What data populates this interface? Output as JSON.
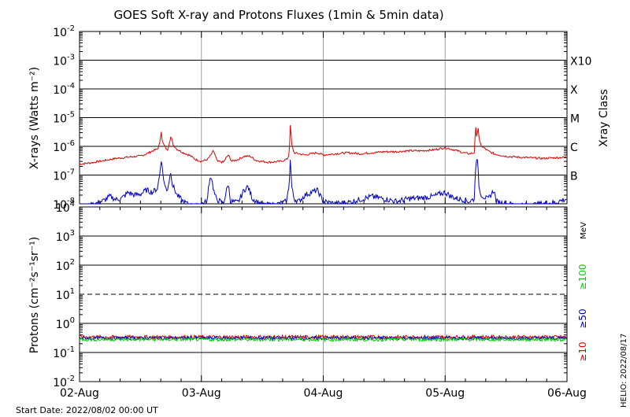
{
  "title": "GOES Soft X-ray and Protons Fluxes   (1min & 5min data)",
  "start_date": "Start Date: 2022/08/02 00:00 UT",
  "credit": "HELIO: 2022/08/17",
  "colors": {
    "xray_long": "#e00000",
    "xray_short": "#0000c8",
    "p10": "#e00000",
    "p50": "#0000c8",
    "p100": "#00d000",
    "grid": "#000000",
    "day_line": "#a0a0a0"
  },
  "chart_data": [
    {
      "type": "line",
      "name": "xray",
      "ylabel": "X-rays (Watts m⁻²)",
      "y_scale": "log",
      "ylim": [
        1e-08,
        0.01
      ],
      "y_ticks": [
        {
          "base": "10",
          "exp": "-2"
        },
        {
          "base": "10",
          "exp": "-3"
        },
        {
          "base": "10",
          "exp": "-4"
        },
        {
          "base": "10",
          "exp": "-5"
        },
        {
          "base": "10",
          "exp": "-6"
        },
        {
          "base": "10",
          "exp": "-7"
        },
        {
          "base": "10",
          "exp": "-8"
        }
      ],
      "class_label": "Xray Class",
      "classes": [
        "X10",
        "X",
        "M",
        "C",
        "B"
      ],
      "x_ticks": [
        "02-Aug",
        "03-Aug",
        "04-Aug",
        "05-Aug",
        "06-Aug"
      ],
      "xlim_days": [
        0,
        4
      ],
      "series": [
        {
          "name": "",
          "color": "#e00000",
          "points": [
            [
              0.0,
              2.4e-07
            ],
            [
              0.1,
              2.7e-07
            ],
            [
              0.2,
              3.2e-07
            ],
            [
              0.3,
              3.8e-07
            ],
            [
              0.4,
              4.2e-07
            ],
            [
              0.5,
              4.6e-07
            ],
            [
              0.55,
              5.5e-07
            ],
            [
              0.6,
              7e-07
            ],
            [
              0.64,
              8e-07
            ],
            [
              0.66,
              1.3e-06
            ],
            [
              0.67,
              3.8e-06
            ],
            [
              0.68,
              1.4e-06
            ],
            [
              0.72,
              7e-07
            ],
            [
              0.74,
              1.5e-06
            ],
            [
              0.75,
              2.2e-06
            ],
            [
              0.77,
              1.1e-06
            ],
            [
              0.8,
              8e-07
            ],
            [
              0.85,
              6e-07
            ],
            [
              0.9,
              5e-07
            ],
            [
              0.95,
              3.5e-07
            ],
            [
              1.0,
              3e-07
            ],
            [
              1.05,
              3.5e-07
            ],
            [
              1.07,
              4.5e-07
            ],
            [
              1.1,
              7e-07
            ],
            [
              1.13,
              3e-07
            ],
            [
              1.18,
              2.8e-07
            ],
            [
              1.22,
              5e-07
            ],
            [
              1.25,
              3e-07
            ],
            [
              1.3,
              3.5e-07
            ],
            [
              1.35,
              4.5e-07
            ],
            [
              1.4,
              4.5e-07
            ],
            [
              1.45,
              3.2e-07
            ],
            [
              1.55,
              2.8e-07
            ],
            [
              1.65,
              3e-07
            ],
            [
              1.7,
              3.5e-07
            ],
            [
              1.72,
              5e-07
            ],
            [
              1.73,
              6.5e-06
            ],
            [
              1.74,
              1.2e-06
            ],
            [
              1.76,
              6e-07
            ],
            [
              1.8,
              5.5e-07
            ],
            [
              1.85,
              5e-07
            ],
            [
              1.9,
              5.5e-07
            ],
            [
              1.95,
              6e-07
            ],
            [
              2.0,
              5e-07
            ],
            [
              2.1,
              5.5e-07
            ],
            [
              2.2,
              6e-07
            ],
            [
              2.3,
              5.5e-07
            ],
            [
              2.4,
              6e-07
            ],
            [
              2.5,
              6.5e-07
            ],
            [
              2.6,
              6.5e-07
            ],
            [
              2.7,
              7e-07
            ],
            [
              2.8,
              7e-07
            ],
            [
              2.9,
              7.5e-07
            ],
            [
              3.0,
              9e-07
            ],
            [
              3.05,
              8e-07
            ],
            [
              3.1,
              7e-07
            ],
            [
              3.15,
              6e-07
            ],
            [
              3.2,
              5.5e-07
            ],
            [
              3.24,
              6e-07
            ],
            [
              3.25,
              5e-06
            ],
            [
              3.26,
              2e-06
            ],
            [
              3.27,
              5e-06
            ],
            [
              3.28,
              1.5e-06
            ],
            [
              3.3,
              1e-06
            ],
            [
              3.35,
              7e-07
            ],
            [
              3.4,
              5.5e-07
            ],
            [
              3.5,
              4.5e-07
            ],
            [
              3.6,
              4.2e-07
            ],
            [
              3.7,
              4e-07
            ],
            [
              3.8,
              3.8e-07
            ],
            [
              3.9,
              4e-07
            ],
            [
              4.0,
              4.2e-07
            ]
          ]
        },
        {
          "name": "",
          "color": "#0000c8",
          "points": [
            [
              0.0,
              7e-09
            ],
            [
              0.1,
              9e-09
            ],
            [
              0.2,
              1.3e-08
            ],
            [
              0.25,
              1.8e-08
            ],
            [
              0.3,
              1.4e-08
            ],
            [
              0.35,
              1.6e-08
            ],
            [
              0.4,
              2.5e-08
            ],
            [
              0.45,
              2e-08
            ],
            [
              0.5,
              2.2e-08
            ],
            [
              0.55,
              3e-08
            ],
            [
              0.6,
              2.5e-08
            ],
            [
              0.64,
              3.5e-08
            ],
            [
              0.66,
              1.2e-07
            ],
            [
              0.67,
              4e-07
            ],
            [
              0.68,
              1.5e-07
            ],
            [
              0.7,
              4e-08
            ],
            [
              0.72,
              3e-08
            ],
            [
              0.74,
              8e-08
            ],
            [
              0.75,
              1.5e-07
            ],
            [
              0.76,
              5e-08
            ],
            [
              0.8,
              2e-08
            ],
            [
              0.85,
              1.2e-08
            ],
            [
              0.9,
              9e-09
            ],
            [
              0.95,
              8e-09
            ],
            [
              1.0,
              1e-08
            ],
            [
              1.05,
              1.2e-08
            ],
            [
              1.06,
              5e-08
            ],
            [
              1.08,
              1e-07
            ],
            [
              1.1,
              3e-08
            ],
            [
              1.12,
              1.5e-08
            ],
            [
              1.18,
              1e-08
            ],
            [
              1.22,
              5e-08
            ],
            [
              1.24,
              1.2e-08
            ],
            [
              1.3,
              1.1e-08
            ],
            [
              1.35,
              3e-08
            ],
            [
              1.38,
              4e-08
            ],
            [
              1.42,
              1.5e-08
            ],
            [
              1.5,
              9e-09
            ],
            [
              1.6,
              9e-09
            ],
            [
              1.7,
              1.2e-08
            ],
            [
              1.72,
              5e-08
            ],
            [
              1.73,
              4e-07
            ],
            [
              1.74,
              4e-08
            ],
            [
              1.76,
              1.5e-08
            ],
            [
              1.8,
              1.2e-08
            ],
            [
              1.85,
              2e-08
            ],
            [
              1.9,
              2.5e-08
            ],
            [
              1.95,
              3e-08
            ],
            [
              2.0,
              1.2e-08
            ],
            [
              2.1,
              1e-08
            ],
            [
              2.2,
              1.1e-08
            ],
            [
              2.3,
              1.4e-08
            ],
            [
              2.4,
              1.8e-08
            ],
            [
              2.5,
              1.5e-08
            ],
            [
              2.6,
              1.2e-08
            ],
            [
              2.7,
              1.5e-08
            ],
            [
              2.8,
              1.6e-08
            ],
            [
              2.9,
              1.8e-08
            ],
            [
              3.0,
              2.5e-08
            ],
            [
              3.05,
              1.8e-08
            ],
            [
              3.1,
              1.5e-08
            ],
            [
              3.15,
              1.4e-08
            ],
            [
              3.2,
              1.2e-08
            ],
            [
              3.24,
              1.5e-08
            ],
            [
              3.25,
              2e-07
            ],
            [
              3.26,
              5e-07
            ],
            [
              3.27,
              1.5e-07
            ],
            [
              3.28,
              3e-08
            ],
            [
              3.3,
              2e-08
            ],
            [
              3.35,
              1.4e-08
            ],
            [
              3.4,
              3e-08
            ],
            [
              3.42,
              1.2e-08
            ],
            [
              3.5,
              1e-08
            ],
            [
              3.6,
              9e-09
            ],
            [
              3.7,
              9e-09
            ],
            [
              3.8,
              1e-08
            ],
            [
              3.9,
              1.1e-08
            ],
            [
              4.0,
              1.5e-08
            ]
          ]
        }
      ]
    },
    {
      "type": "line",
      "name": "protons",
      "ylabel": "Protons (cm⁻²s⁻¹sr⁻¹)",
      "y_scale": "log",
      "ylim": [
        0.01,
        10000.0
      ],
      "y_ticks": [
        {
          "base": "10",
          "exp": "4"
        },
        {
          "base": "10",
          "exp": "3"
        },
        {
          "base": "10",
          "exp": "2"
        },
        {
          "base": "10",
          "exp": "1"
        },
        {
          "base": "10",
          "exp": "0"
        },
        {
          "base": "10",
          "exp": "-1"
        },
        {
          "base": "10",
          "exp": "-2"
        }
      ],
      "threshold": 10,
      "unit_label": "MeV",
      "x_ticks": [
        "02-Aug",
        "03-Aug",
        "04-Aug",
        "05-Aug",
        "06-Aug"
      ],
      "xlim_days": [
        0,
        4
      ],
      "series": [
        {
          "name": "≥10",
          "color": "#e00000",
          "level": 0.34
        },
        {
          "name": "≥50",
          "color": "#0000c8",
          "level": 0.31
        },
        {
          "name": "≥100",
          "color": "#00d000",
          "level": 0.28
        }
      ]
    }
  ]
}
